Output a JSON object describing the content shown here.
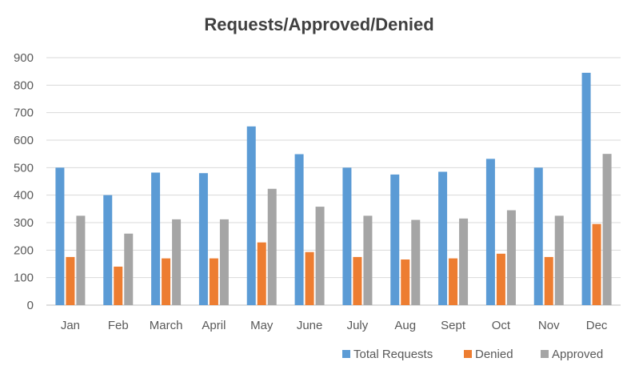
{
  "chart_data": {
    "type": "bar",
    "title": "Requests/Approved/Denied",
    "xlabel": "",
    "ylabel": "",
    "categories": [
      "Jan",
      "Feb",
      "March",
      "April",
      "May",
      "June",
      "July",
      "Aug",
      "Sept",
      "Oct",
      "Nov",
      "Dec"
    ],
    "series": [
      {
        "name": "Total Requests",
        "color": "#5B9BD5",
        "values": [
          500,
          400,
          482,
          480,
          650,
          549,
          500,
          475,
          485,
          532,
          500,
          845
        ]
      },
      {
        "name": "Denied",
        "color": "#ED7D31",
        "values": [
          175,
          140,
          170,
          170,
          228,
          193,
          175,
          166,
          170,
          187,
          175,
          295
        ]
      },
      {
        "name": "Approved",
        "color": "#A5A5A5",
        "values": [
          325,
          260,
          312,
          312,
          423,
          358,
          325,
          310,
          315,
          345,
          325,
          550
        ]
      }
    ],
    "ylim": [
      0,
      900
    ],
    "yticks": [
      0,
      100,
      200,
      300,
      400,
      500,
      600,
      700,
      800,
      900
    ],
    "grid": true,
    "legend": "bottom-right"
  }
}
